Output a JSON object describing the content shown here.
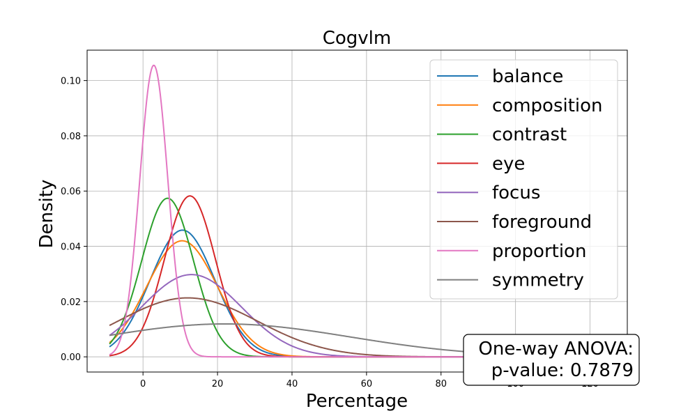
{
  "chart_data": {
    "type": "line",
    "title": "Cogvlm",
    "xlabel": "Percentage",
    "ylabel": "Density",
    "xlim": [
      -15,
      130
    ],
    "ylim": [
      -0.0055,
      0.111
    ],
    "x_ticks": [
      0,
      20,
      40,
      60,
      80,
      100,
      120
    ],
    "y_ticks": [
      0.0,
      0.02,
      0.04,
      0.06,
      0.08,
      0.1
    ],
    "x_tick_labels": [
      "0",
      "20",
      "40",
      "60",
      "80",
      "100",
      "120"
    ],
    "y_tick_labels": [
      "0.00",
      "0.02",
      "0.04",
      "0.06",
      "0.08",
      "0.10"
    ],
    "x_range_drawn": [
      -9,
      122
    ],
    "grid": true,
    "legend_position": "top-right",
    "series": [
      {
        "name": "balance",
        "color": "#1f77b4",
        "mean": 10.6,
        "sd": 8.7
      },
      {
        "name": "composition",
        "color": "#ff7f0e",
        "mean": 10.5,
        "sd": 9.5
      },
      {
        "name": "contrast",
        "color": "#2ca02c",
        "mean": 6.6,
        "sd": 6.95
      },
      {
        "name": "eye",
        "color": "#d62728",
        "mean": 12.6,
        "sd": 6.85
      },
      {
        "name": "focus",
        "color": "#9467bd",
        "mean": 13.0,
        "sd": 13.4
      },
      {
        "name": "foreground",
        "color": "#8c564b",
        "mean": 12.0,
        "sd": 18.7
      },
      {
        "name": "proportion",
        "color": "#e377c2",
        "mean": 2.9,
        "sd": 3.78
      },
      {
        "name": "symmetry",
        "color": "#7f7f7f",
        "mean": 22.0,
        "sd": 33.5
      }
    ],
    "annotation": {
      "line1": "One-way ANOVA:",
      "line2": "p-value: 0.7879"
    }
  }
}
